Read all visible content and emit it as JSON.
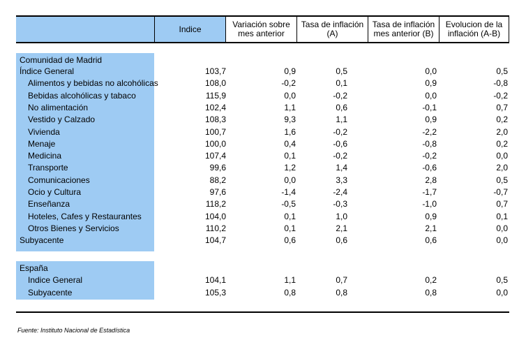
{
  "header": {
    "indice": "Indice",
    "variacion": [
      "Variación sobre",
      "mes anterior"
    ],
    "tasa_a": [
      "Tasa de inflación",
      "(A)"
    ],
    "tasa_b": [
      "Tasa de inflación",
      "mes anterior (B)"
    ],
    "evolucion": [
      "Evolucion de la",
      "inflación (A-B)"
    ]
  },
  "madrid": {
    "title": "Comunidad de Madrid",
    "rows": [
      {
        "label": "Índice General",
        "indent": false,
        "v": [
          "103,7",
          "0,9",
          "0,5",
          "0,0",
          "0,5"
        ]
      },
      {
        "label": "Alimentos y bebidas no alcohólicas",
        "indent": true,
        "v": [
          "108,0",
          "-0,2",
          "0,1",
          "0,9",
          "-0,8"
        ]
      },
      {
        "label": "Bebidas alcohólicas y tabaco",
        "indent": true,
        "v": [
          "115,9",
          "0,0",
          "-0,2",
          "0,0",
          "-0,2"
        ]
      },
      {
        "label": "No alimentación",
        "indent": true,
        "v": [
          "102,4",
          "1,1",
          "0,6",
          "-0,1",
          "0,7"
        ]
      },
      {
        "label": "Vestido y Calzado",
        "indent": true,
        "v": [
          "108,3",
          "9,3",
          "1,1",
          "0,9",
          "0,2"
        ]
      },
      {
        "label": "Vivienda",
        "indent": true,
        "v": [
          "100,7",
          "1,6",
          "-0,2",
          "-2,2",
          "2,0"
        ]
      },
      {
        "label": "Menaje",
        "indent": true,
        "v": [
          "100,0",
          "0,4",
          "-0,6",
          "-0,8",
          "0,2"
        ]
      },
      {
        "label": "Medicina",
        "indent": true,
        "v": [
          "107,4",
          "0,1",
          "-0,2",
          "-0,2",
          "0,0"
        ]
      },
      {
        "label": "Transporte",
        "indent": true,
        "v": [
          "99,6",
          "1,2",
          "1,4",
          "-0,6",
          "2,0"
        ]
      },
      {
        "label": "Comunicaciones",
        "indent": true,
        "v": [
          "88,2",
          "0,0",
          "3,3",
          "2,8",
          "0,5"
        ]
      },
      {
        "label": "Ocio y Cultura",
        "indent": true,
        "v": [
          "97,6",
          "-1,4",
          "-2,4",
          "-1,7",
          "-0,7"
        ]
      },
      {
        "label": "Enseñanza",
        "indent": true,
        "v": [
          "118,2",
          "-0,5",
          "-0,3",
          "-1,0",
          "0,7"
        ]
      },
      {
        "label": "Hoteles, Cafes y Restaurantes",
        "indent": true,
        "v": [
          "104,0",
          "0,1",
          "1,0",
          "0,9",
          "0,1"
        ]
      },
      {
        "label": "Otros Bienes y Servicios",
        "indent": true,
        "v": [
          "110,2",
          "0,1",
          "2,1",
          "2,1",
          "0,0"
        ]
      },
      {
        "label": "Subyacente",
        "indent": false,
        "v": [
          "104,7",
          "0,6",
          "0,6",
          "0,6",
          "0,0"
        ]
      }
    ]
  },
  "espana": {
    "title": "España",
    "rows": [
      {
        "label": "Indice General",
        "indent": true,
        "v": [
          "104,1",
          "1,1",
          "0,7",
          "0,2",
          "0,5"
        ]
      },
      {
        "label": "Subyacente",
        "indent": true,
        "v": [
          "105,3",
          "0,8",
          "0,8",
          "0,8",
          "0,0"
        ]
      }
    ]
  },
  "source": "Fuente: Instituto Nacional de Estadística",
  "colors": {
    "label_fill": "#9ecbf3"
  }
}
